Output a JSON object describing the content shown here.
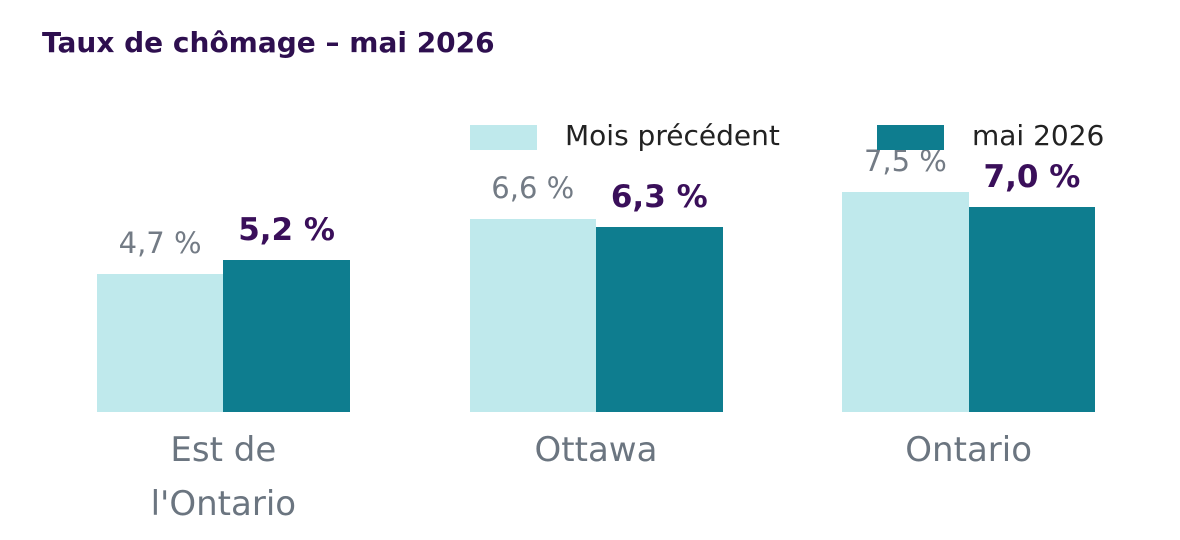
{
  "chart_data": {
    "type": "bar",
    "title": "Taux de chômage – mai 2026",
    "categories": [
      "Est de l'Ontario",
      "Ottawa",
      "Ontario"
    ],
    "series": [
      {
        "name": "Mois précédent",
        "color": "#bfe9ec",
        "values": [
          4.7,
          6.6,
          7.5
        ],
        "value_labels": [
          "4,7 %",
          "6,6 %",
          "7,5 %"
        ]
      },
      {
        "name": "mai 2026",
        "color": "#0e7d8f",
        "values": [
          5.2,
          6.3,
          7.0
        ],
        "value_labels": [
          "5,2 %",
          "6,3 %",
          "7,0 %"
        ]
      }
    ],
    "ylim": [
      0,
      14
    ],
    "legend": "top-right"
  }
}
